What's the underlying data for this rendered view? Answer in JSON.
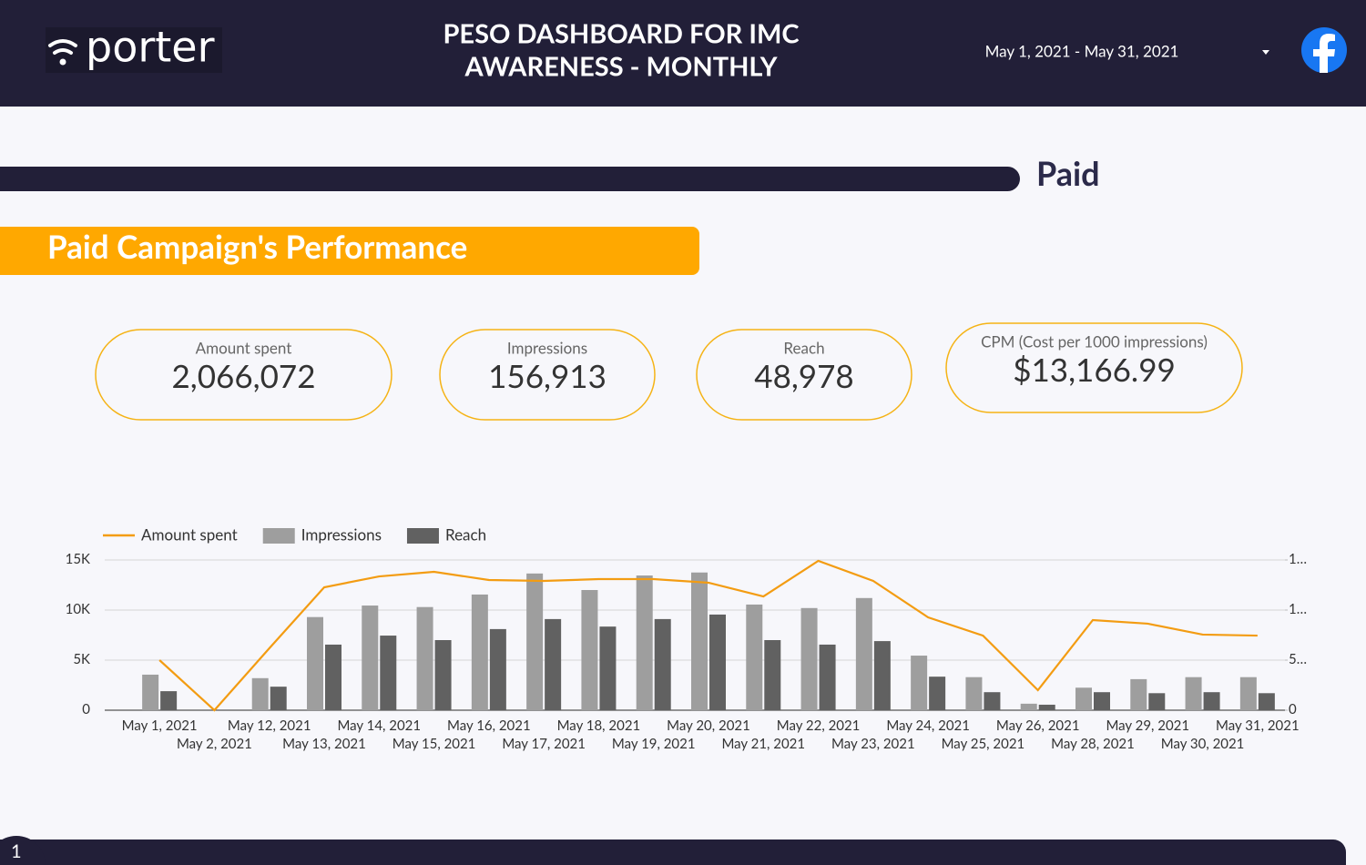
{
  "header": {
    "logo": "porter",
    "title_lines": [
      "PESO DASHBOARD FOR IMC",
      "AWARENESS  - MONTHLY"
    ],
    "date_range": "May 1, 2021 - May 31, 2021"
  },
  "section": "Paid",
  "banner": "Paid Campaign's Performance",
  "kpis": [
    {
      "label": "Amount spent",
      "value": "2,066,072"
    },
    {
      "label": "Impressions",
      "value": "156,913"
    },
    {
      "label": "Reach",
      "value": "48,978"
    },
    {
      "label": "CPM (Cost per 1000 impressions)",
      "value": "$13,166.99"
    }
  ],
  "page_number": "1",
  "chart_data": {
    "type": "bar",
    "categories": [
      "May 1, 2021",
      "May 2, 2021",
      "May 12, 2021",
      "May 13, 2021",
      "May 14, 2021",
      "May 15, 2021",
      "May 16, 2021",
      "May 17, 2021",
      "May 18, 2021",
      "May 19, 2021",
      "May 20, 2021",
      "May 21, 2021",
      "May 22, 2021",
      "May 23, 2021",
      "May 24, 2021",
      "May 25, 2021",
      "May 26, 2021",
      "May 28, 2021",
      "May 29, 2021",
      "May 30, 2021",
      "May 31, 2021"
    ],
    "series": [
      {
        "name": "Amount spent",
        "type": "line",
        "axis": "y2",
        "color": "#f39c12",
        "values": [
          50000,
          0,
          61800,
          122700,
          133600,
          138200,
          130000,
          129100,
          130900,
          130900,
          127300,
          113600,
          149100,
          129100,
          92700,
          74500,
          20000,
          90000,
          86400,
          75500,
          74500
        ]
      },
      {
        "name": "Impressions",
        "type": "bar",
        "color": "#9e9e9e",
        "values": [
          3550,
          0,
          3200,
          9300,
          10450,
          10300,
          11550,
          13650,
          12000,
          13450,
          13750,
          10550,
          10200,
          11200,
          5450,
          3300,
          650,
          2250,
          3100,
          3300,
          3300
        ]
      },
      {
        "name": "Reach",
        "type": "bar",
        "color": "#616161",
        "values": [
          1900,
          0,
          2350,
          6550,
          7450,
          7000,
          8100,
          9100,
          8350,
          9100,
          9550,
          7000,
          6550,
          6900,
          3350,
          1800,
          550,
          1800,
          1700,
          1800,
          1700
        ]
      }
    ],
    "ylim": [
      0,
      15000
    ],
    "yticks": [
      0,
      {
        "value": 5000,
        "label": "5K"
      },
      {
        "value": 10000,
        "label": "10K"
      },
      {
        "value": 15000,
        "label": "15K"
      }
    ],
    "y2lim": [
      0,
      150000
    ],
    "y2ticks": [
      0,
      {
        "value": 50000,
        "label": "5…"
      },
      {
        "value": 100000,
        "label": "1…"
      },
      {
        "value": 150000,
        "label": "1…"
      }
    ],
    "grid": true,
    "legend": "top-left"
  }
}
